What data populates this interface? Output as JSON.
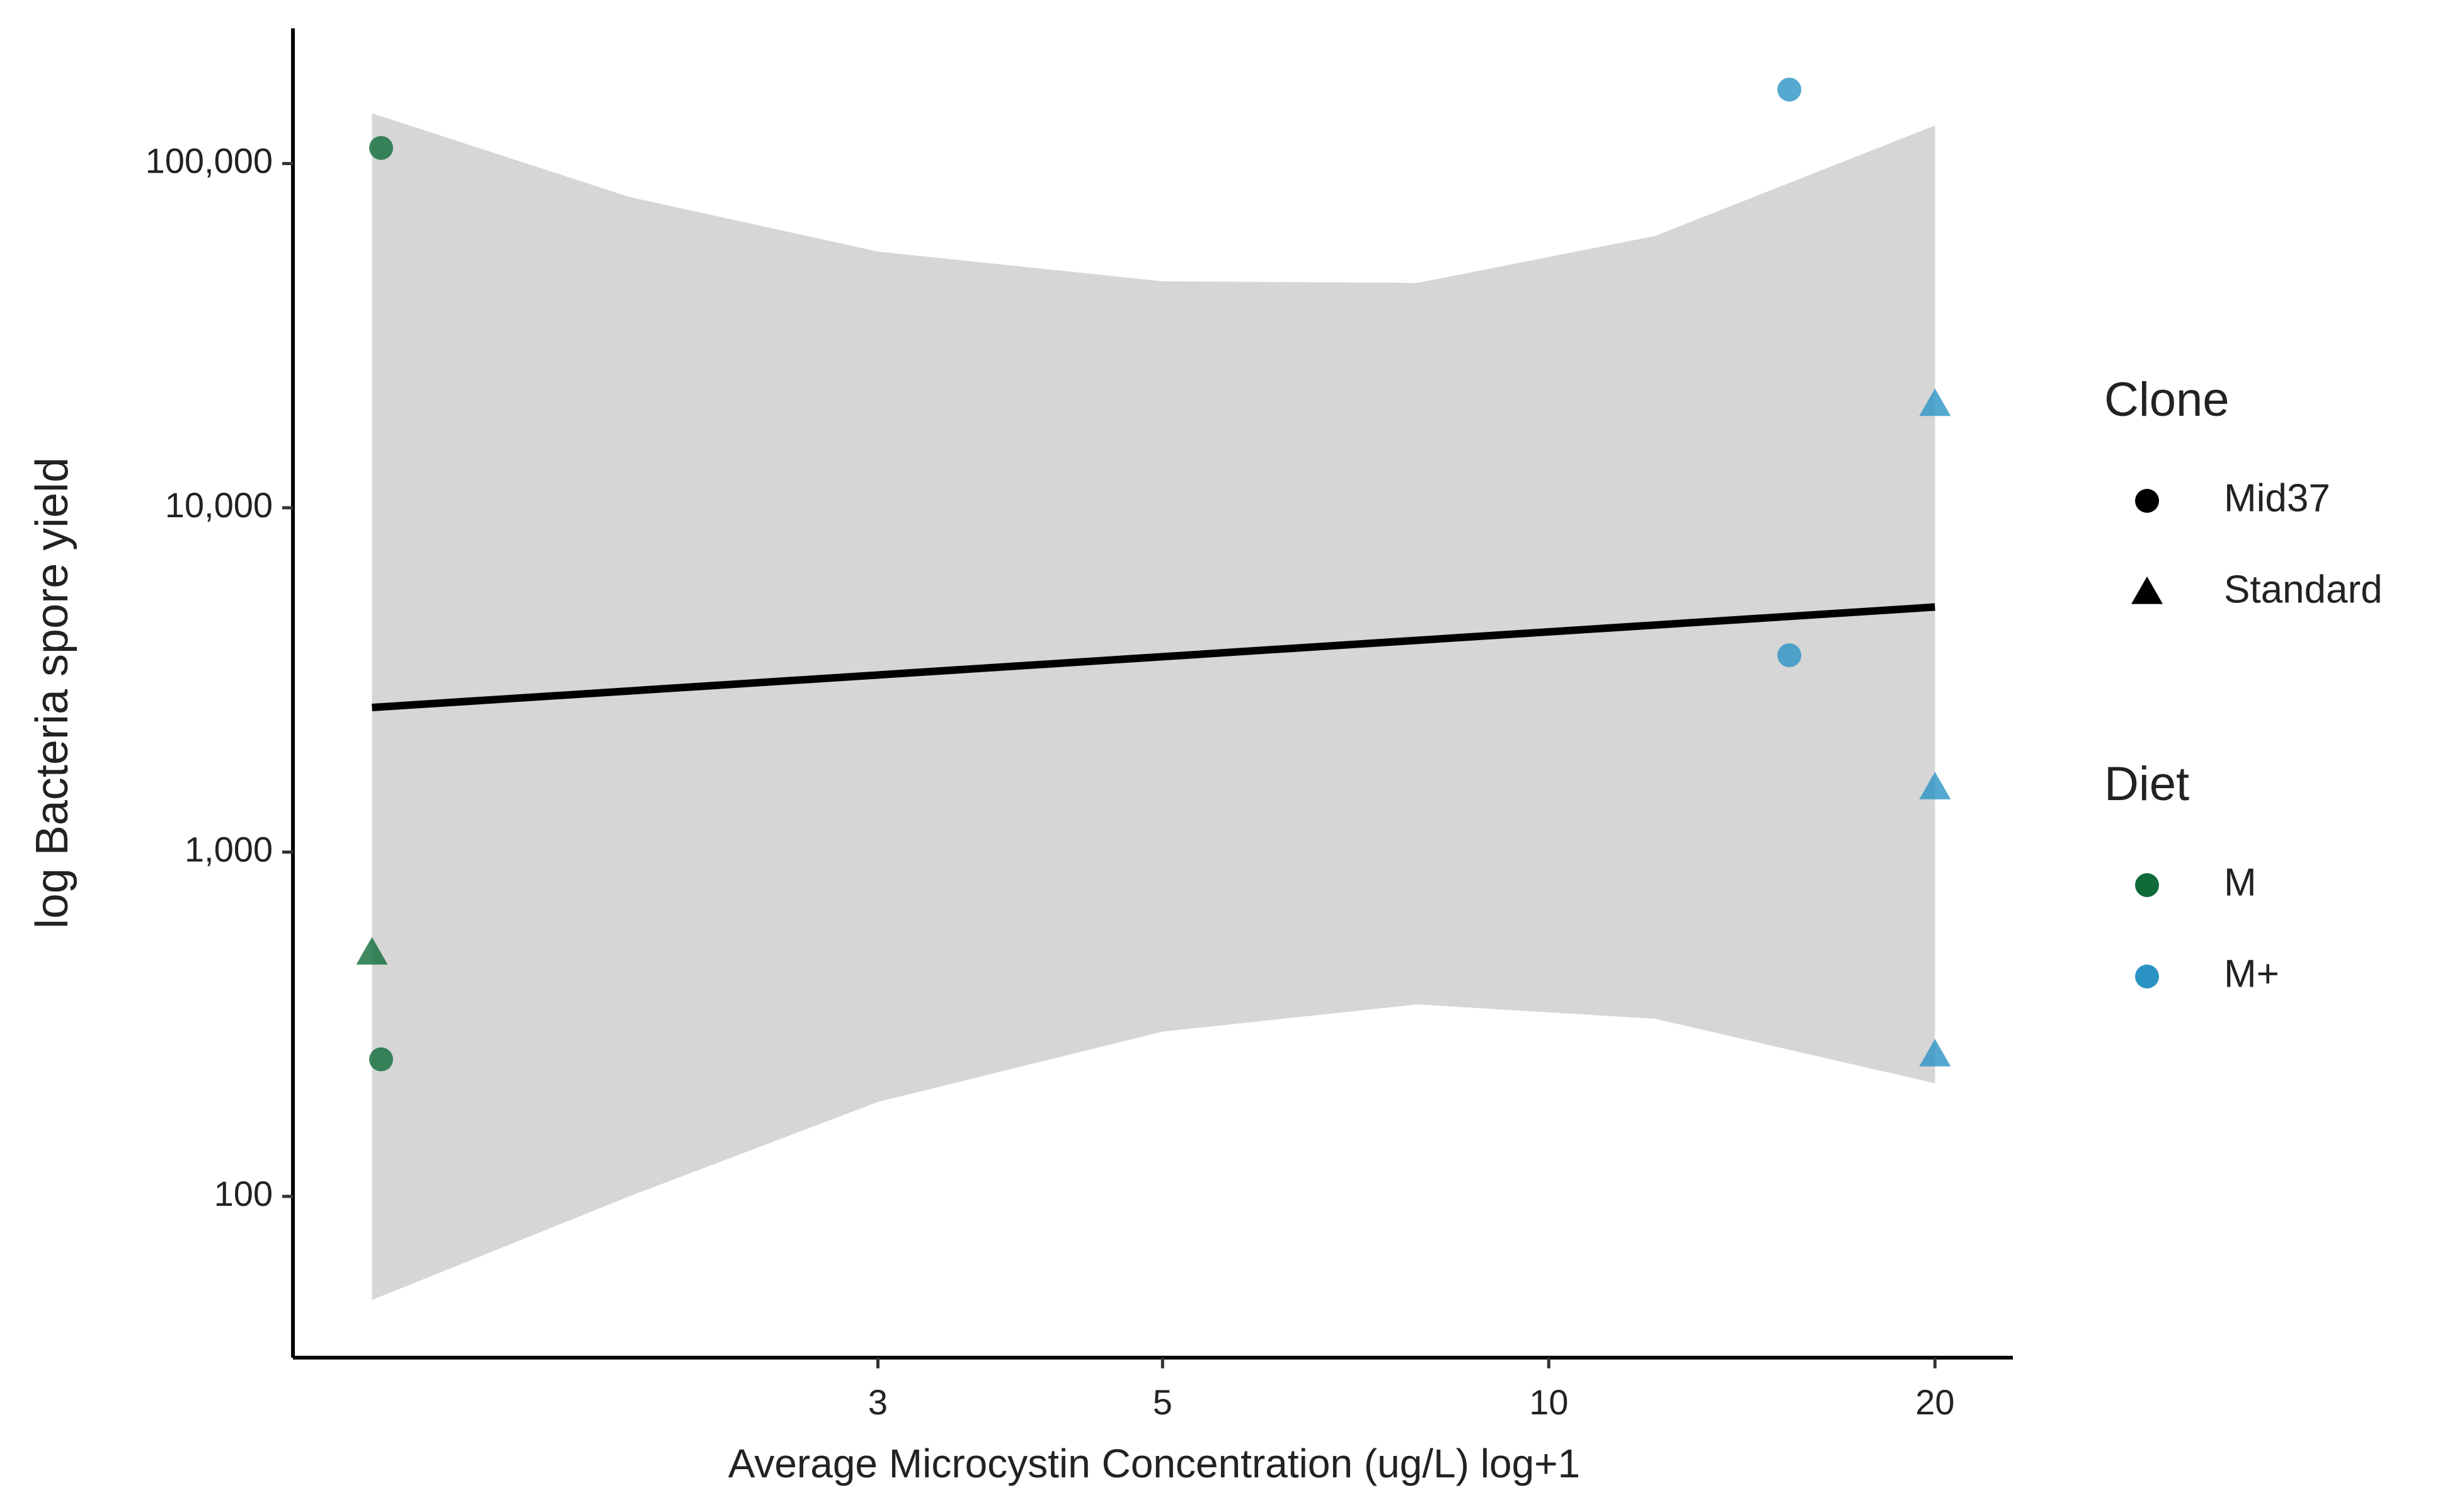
{
  "chart_data": {
    "type": "scatter",
    "xlabel": "Average Microcystin Concentration (ug/L) log+1",
    "ylabel": "log Bacteria spore yield",
    "xscale": "log",
    "yscale": "log",
    "xlim": [
      1.05,
      23
    ],
    "ylim": [
      34,
      247000
    ],
    "xticks": [
      3,
      5,
      10,
      20
    ],
    "yticks": [
      100,
      {
        "value": 1000,
        "label": "1,000"
      },
      {
        "value": 10000,
        "label": "10,000"
      },
      {
        "value": 100000,
        "label": "100,000"
      }
    ],
    "series": [
      {
        "shape": "circle",
        "color": "#0f6b3a",
        "x": [
          1.23,
          1.23
        ],
        "values": [
          111000,
          250
        ]
      },
      {
        "shape": "triangle",
        "color": "#0f6b3a",
        "x": [
          1.21
        ],
        "values": [
          510
        ]
      },
      {
        "shape": "circle",
        "color": "#2b93c4",
        "x": [
          15.4,
          15.4
        ],
        "values": [
          164000,
          3730
        ]
      },
      {
        "shape": "triangle",
        "color": "#2b93c4",
        "x": [
          20,
          20,
          20
        ],
        "values": [
          20000,
          1540,
          258
        ]
      }
    ],
    "fit": {
      "color": "#000000",
      "x": [
        1.21,
        20
      ],
      "values": [
        2630,
        5150
      ]
    },
    "band": {
      "color": "#d6d6d6",
      "x": [
        1.21,
        1.92,
        3,
        5,
        7.9,
        12.1,
        20
      ],
      "upper": [
        140000,
        80000,
        55500,
        45500,
        45000,
        61600,
        129000
      ],
      "lower": [
        50,
        100,
        188,
        301,
        361,
        328,
        213
      ]
    },
    "legends": [
      {
        "title": "Clone",
        "items": [
          {
            "label": "Mid37",
            "shape": "circle",
            "color": "#000000"
          },
          {
            "label": "Standard",
            "shape": "triangle",
            "color": "#000000"
          }
        ]
      },
      {
        "title": "Diet",
        "items": [
          {
            "label": "M",
            "shape": "circle",
            "color": "#0f6b3a"
          },
          {
            "label": "M+",
            "shape": "circle",
            "color": "#2b93c4"
          }
        ]
      }
    ]
  }
}
